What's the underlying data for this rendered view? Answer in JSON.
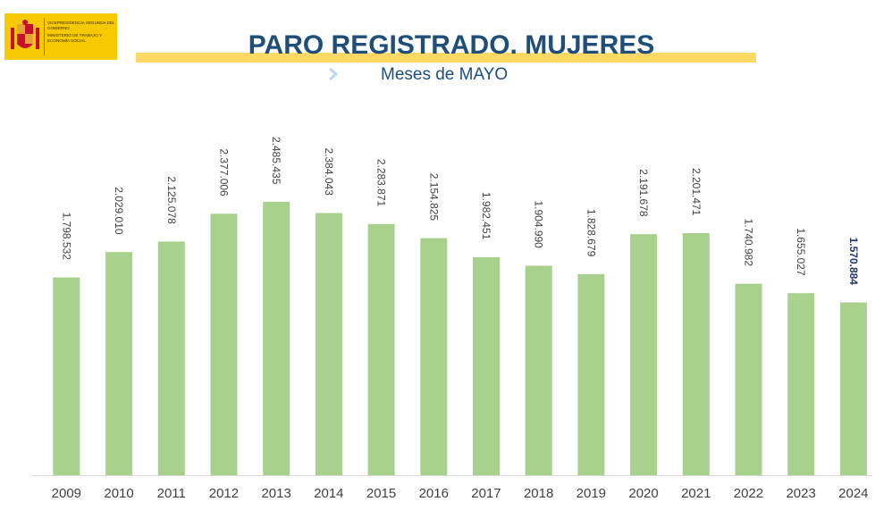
{
  "logo": {
    "line1": "VICEPRESIDENCIA SEGUNDA DEL GOBIERNO",
    "line2": "MINISTERIO DE TRABAJO Y ECONOMÍA SOCIAL"
  },
  "header": {
    "title": "PARO REGISTRADO. MUJERES",
    "subtitle": "Meses de MAYO"
  },
  "colors": {
    "bar": "#a9d18e",
    "title": "#1f4e79",
    "label_highlight": "#1f3864"
  },
  "chart_data": {
    "type": "bar",
    "categories": [
      "2009",
      "2010",
      "2011",
      "2012",
      "2013",
      "2014",
      "2015",
      "2016",
      "2017",
      "2018",
      "2019",
      "2020",
      "2021",
      "2022",
      "2023",
      "2024"
    ],
    "values": [
      1798532,
      2029010,
      2125078,
      2377006,
      2485435,
      2384043,
      2283871,
      2154825,
      1982451,
      1904990,
      1828679,
      2191678,
      2201471,
      1740982,
      1655027,
      1570884
    ],
    "data_labels": [
      "1.798.532",
      "2.029.010",
      "2.125.078",
      "2.377.006",
      "2.485.435",
      "2.384.043",
      "2.283.871",
      "2.154.825",
      "1.982.451",
      "1.904.990",
      "1.828.679",
      "2.191.678",
      "2.201.471",
      "1.740.982",
      "1.655.027",
      "1.570.884"
    ],
    "highlight_index": 15,
    "title": "PARO REGISTRADO. MUJERES",
    "subtitle": "Meses de MAYO",
    "xlabel": "",
    "ylabel": "",
    "ylim": [
      0,
      2485435
    ],
    "grid": false,
    "legend": "none"
  }
}
